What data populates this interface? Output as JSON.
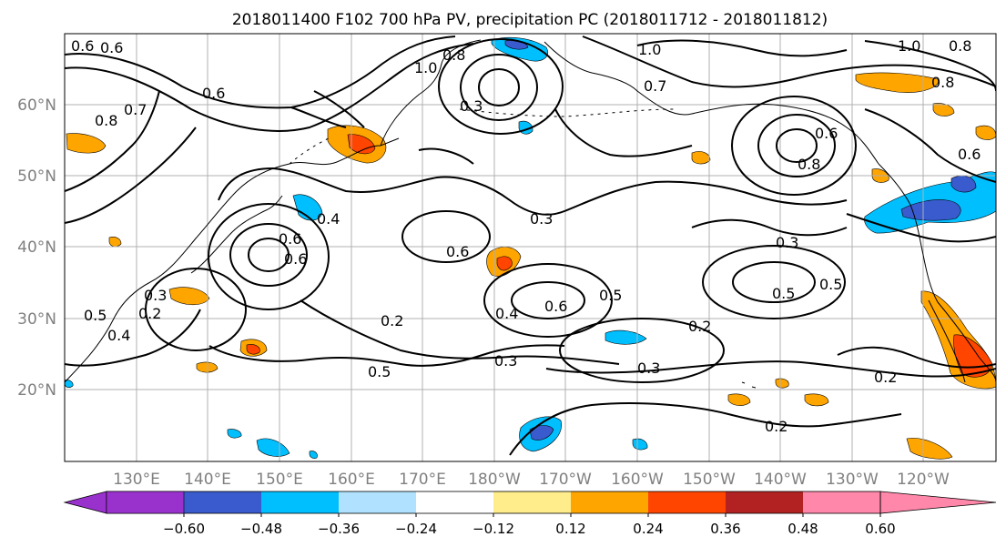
{
  "title": "2018011400 F102 700 hPa PV, precipitation PC (2018011712 - 2018011812)",
  "map": {
    "lon_labels": [
      "130°E",
      "140°E",
      "150°E",
      "160°E",
      "170°E",
      "180°W",
      "170°W",
      "160°W",
      "150°W",
      "140°W",
      "130°W",
      "120°W"
    ],
    "lat_labels": [
      "20°N",
      "30°N",
      "40°N",
      "50°N",
      "60°N"
    ],
    "contour_labels": [
      "0.6",
      "0.6",
      "0.6",
      "0.8",
      "0.7",
      "1.0",
      "0.8",
      "0.3",
      "1.0",
      "0.7",
      "1.0",
      "0.8",
      "0.8",
      "0.6",
      "0.8",
      "0.6",
      "0.4",
      "0.6",
      "0.6",
      "0.3",
      "0.3",
      "0.6",
      "0.5",
      "0.5",
      "0.5",
      "0.4",
      "0.2",
      "0.2",
      "0.4",
      "0.6",
      "0.5",
      "0.2",
      "0.5",
      "0.3",
      "0.3",
      "0.2",
      "0.2",
      "0.3"
    ]
  },
  "colorbar": {
    "colors": [
      "#9932CC",
      "#000080",
      "#3A5BCD",
      "#00BFFF",
      "#B0E2FF",
      "#FFFFFF",
      "#FFEC8B",
      "#FFA500",
      "#FF4500",
      "#B22222",
      "#FF88AA"
    ],
    "tick_labels": [
      "−0.60",
      "−0.48",
      "−0.36",
      "−0.24",
      "−0.12",
      "0.12",
      "0.24",
      "0.36",
      "0.48",
      "0.60"
    ]
  }
}
